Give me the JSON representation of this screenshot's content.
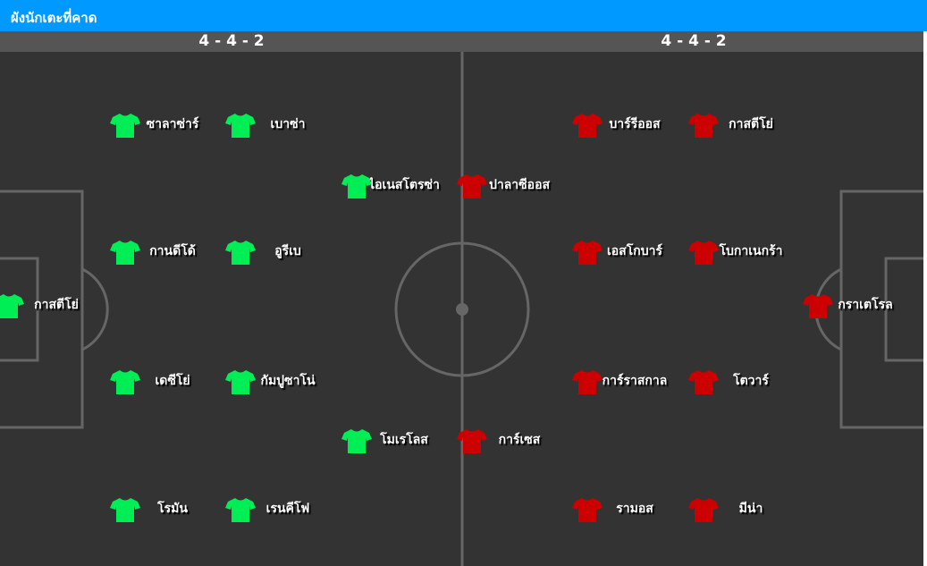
{
  "header": {
    "title": "ผังนักเตะที่คาด"
  },
  "home": {
    "formation": "4 - 4 - 2",
    "color": "#00ee55",
    "goalkeeper": "กาสตีโย่",
    "col1": [
      "ซาลาซ่าร์",
      "กานดีโด้",
      "เดซีโย่",
      "โรมัน"
    ],
    "col2": [
      "เบาซ่า",
      "อูรีเบ",
      "กัมปูซาโน่",
      "เรนคีโฟ"
    ],
    "forwards": [
      "ไอเนสโตรซ่า",
      "โมเรโลส"
    ]
  },
  "away": {
    "formation": "4 - 4 - 2",
    "color": "#cc0000",
    "goalkeeper": "กราเตโรล",
    "col1": [
      "บาร์รีออส",
      "เอสโกบาร์",
      "การ์ราสกาล",
      "รามอส"
    ],
    "col2": [
      "กาสตีโย่",
      "โบกาเนกร้า",
      "โตวาร์",
      "มีน่า"
    ],
    "forwards": [
      "ปาลาซีออส",
      "การ์เซส"
    ]
  }
}
